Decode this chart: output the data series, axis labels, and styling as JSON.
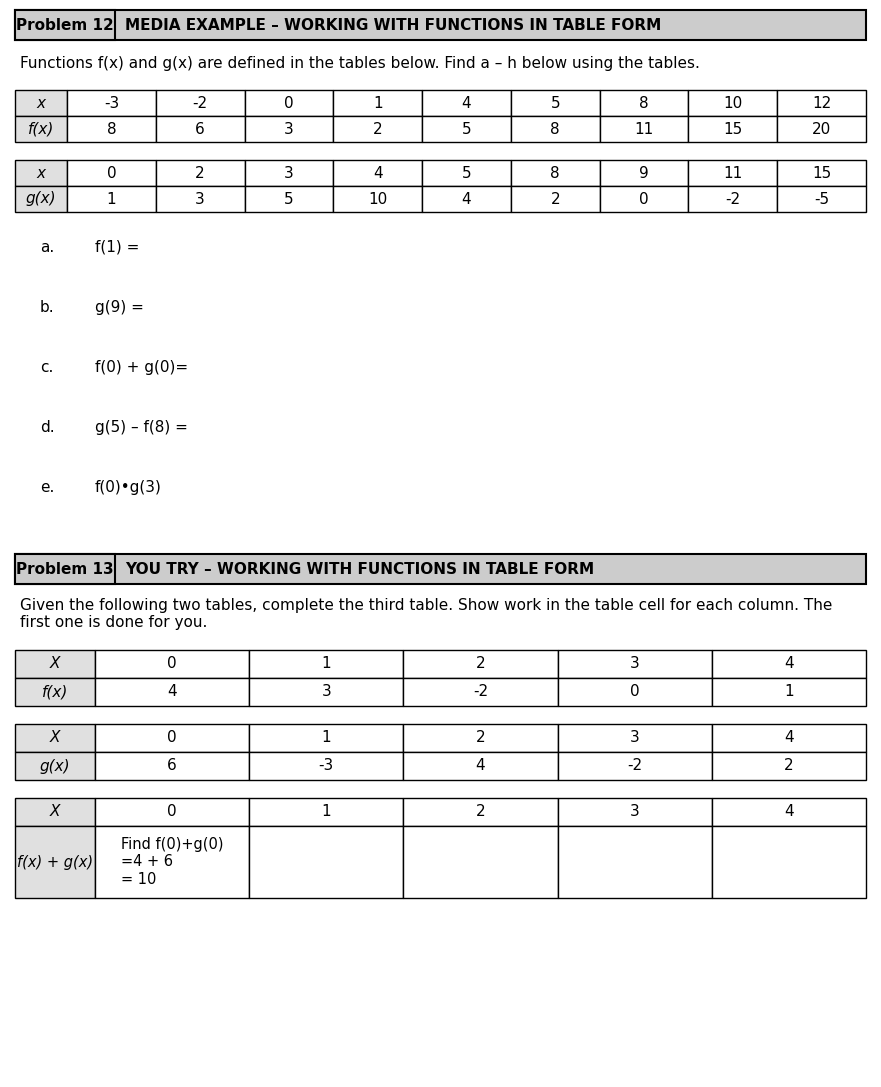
{
  "page_bg": "#ffffff",
  "header_bg": "#cccccc",
  "header_border": "#000000",
  "table_border": "#000000",
  "header_row_bg": "#e0e0e0",
  "p12_header_label": "Problem 12",
  "p12_header_title": "MEDIA EXAMPLE – WORKING WITH FUNCTIONS IN TABLE FORM",
  "p12_description": "Functions f(x) and g(x) are defined in the tables below. Find a – h below using the tables.",
  "fx_table_x": [
    "-3",
    "-2",
    "0",
    "1",
    "4",
    "5",
    "8",
    "10",
    "12"
  ],
  "fx_table_fx": [
    "8",
    "6",
    "3",
    "2",
    "5",
    "8",
    "11",
    "15",
    "20"
  ],
  "gx_table_x": [
    "0",
    "2",
    "3",
    "4",
    "5",
    "8",
    "9",
    "11",
    "15"
  ],
  "gx_table_gx": [
    "1",
    "3",
    "5",
    "10",
    "4",
    "2",
    "0",
    "-2",
    "-5"
  ],
  "p13_header_label": "Problem 13",
  "p13_header_title": "YOU TRY – WORKING WITH FUNCTIONS IN TABLE FORM",
  "p13_description": "Given the following two tables, complete the third table. Show work in the table cell for each column. The\nfirst one is done for you.",
  "p13_fx_x": [
    "0",
    "1",
    "2",
    "3",
    "4"
  ],
  "p13_fx_fx": [
    "4",
    "3",
    "-2",
    "0",
    "1"
  ],
  "p13_gx_x": [
    "0",
    "1",
    "2",
    "3",
    "4"
  ],
  "p13_gx_gx": [
    "6",
    "-3",
    "4",
    "-2",
    "2"
  ],
  "p13_sum_x": [
    "0",
    "1",
    "2",
    "3",
    "4"
  ],
  "p13_sum_row_label": "f(x) + g(x)",
  "p13_sum_first_cell": "Find f(0)+g(0)\n=4 + 6\n= 10"
}
